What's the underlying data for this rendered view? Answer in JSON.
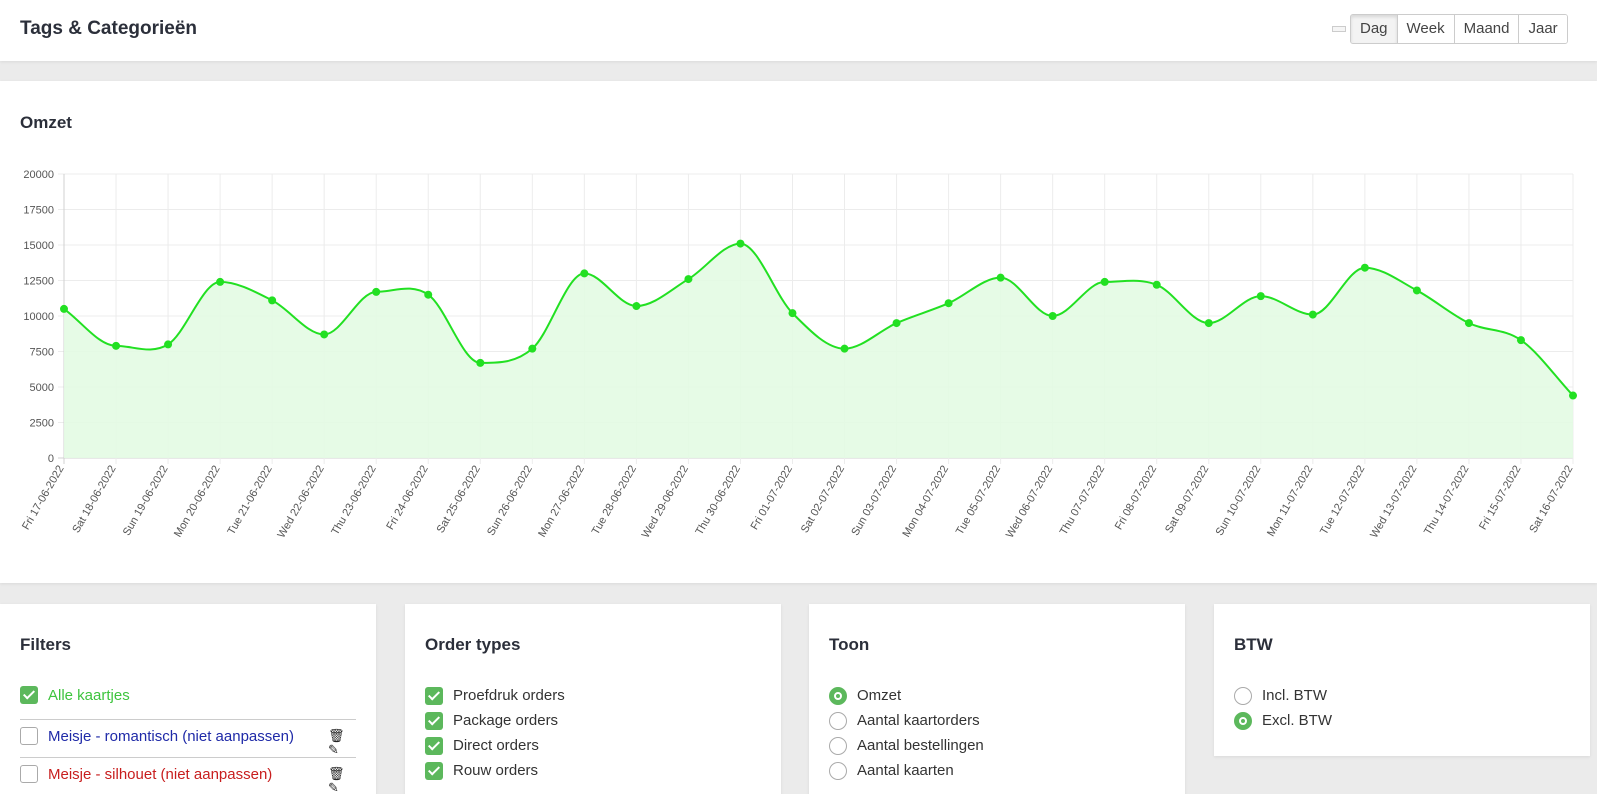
{
  "header": {
    "title": "Tags & Categorieën",
    "periods": [
      "Dag",
      "Week",
      "Maand",
      "Jaar"
    ]
  },
  "chart": {
    "title": "Omzet"
  },
  "chart_data": {
    "type": "area",
    "title": "Omzet",
    "ylim": [
      0,
      20000
    ],
    "yticks": [
      "0",
      "2500",
      "5000",
      "7500",
      "10000",
      "12500",
      "15000",
      "17500",
      "20000"
    ],
    "grid": true,
    "line_color": "#22e022",
    "fill_color": "#e3fbe3",
    "categories": [
      "Fri 17-06-2022",
      "Sat 18-06-2022",
      "Sun 19-06-2022",
      "Mon 20-06-2022",
      "Tue 21-06-2022",
      "Wed 22-06-2022",
      "Thu 23-06-2022",
      "Fri 24-06-2022",
      "Sat 25-06-2022",
      "Sun 26-06-2022",
      "Mon 27-06-2022",
      "Tue 28-06-2022",
      "Wed 29-06-2022",
      "Thu 30-06-2022",
      "Fri 01-07-2022",
      "Sat 02-07-2022",
      "Sun 03-07-2022",
      "Mon 04-07-2022",
      "Tue 05-07-2022",
      "Wed 06-07-2022",
      "Thu 07-07-2022",
      "Fri 08-07-2022",
      "Sat 09-07-2022",
      "Sun 10-07-2022",
      "Mon 11-07-2022",
      "Tue 12-07-2022",
      "Wed 13-07-2022",
      "Thu 14-07-2022",
      "Fri 15-07-2022",
      "Sat 16-07-2022"
    ],
    "values": [
      10500,
      7900,
      8000,
      12400,
      11100,
      8700,
      11700,
      11500,
      6700,
      7700,
      13000,
      10700,
      12600,
      15100,
      10200,
      7700,
      9500,
      10900,
      12700,
      10000,
      12400,
      12200,
      9500,
      11400,
      10100,
      13400,
      11800,
      9500,
      8300,
      4400
    ]
  },
  "filters": {
    "title": "Filters",
    "items": [
      {
        "label": "Alle kaartjes",
        "checked": true,
        "color": "#3ec43e"
      },
      {
        "label": "Meisje - romantisch (niet aanpassen)",
        "checked": false,
        "color": "#1f2aa8"
      },
      {
        "label": "Meisje - silhouet (niet aanpassen)",
        "checked": false,
        "color": "#c81e1e"
      }
    ],
    "icons": [
      "trash-icon",
      "pencil-icon"
    ]
  },
  "order_types": {
    "title": "Order types",
    "items": [
      "Proefdruk orders",
      "Package orders",
      "Direct orders",
      "Rouw orders"
    ]
  },
  "toon": {
    "title": "Toon",
    "items": [
      "Omzet",
      "Aantal kaartorders",
      "Aantal bestellingen",
      "Aantal kaarten"
    ],
    "selected": "Omzet"
  },
  "btw": {
    "title": "BTW",
    "items": [
      "Incl. BTW",
      "Excl. BTW"
    ],
    "selected": "Excl. BTW"
  }
}
